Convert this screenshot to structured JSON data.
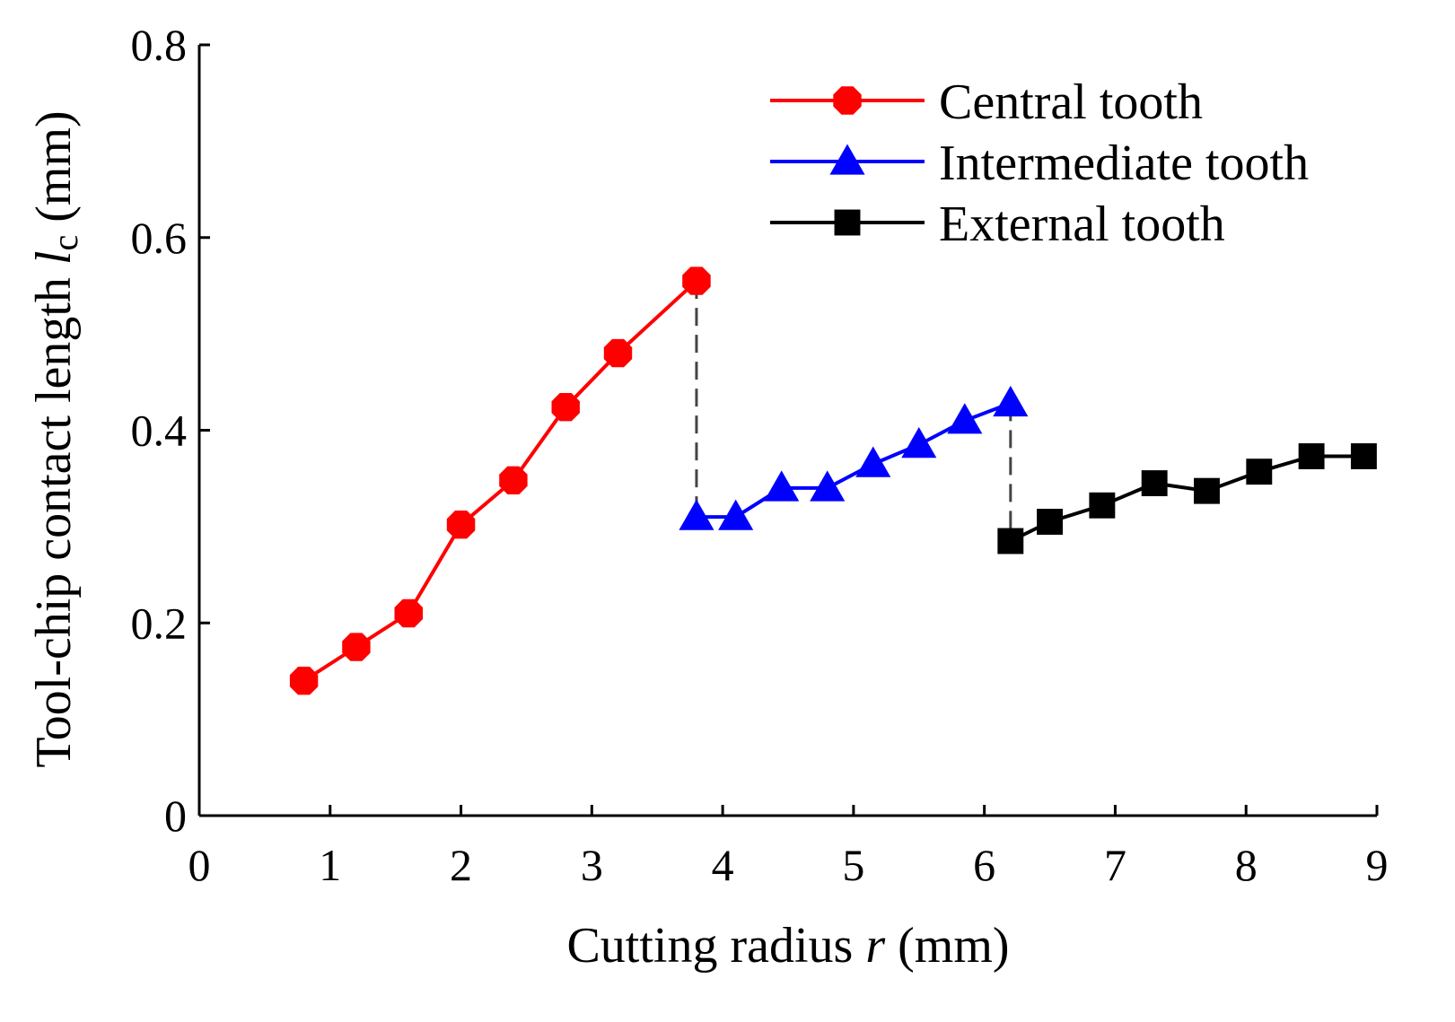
{
  "chart_data": {
    "type": "line",
    "title": "",
    "xlabel": {
      "prefix": "Cutting radius ",
      "var": "r",
      "suffix": " (mm)"
    },
    "ylabel": {
      "prefix": "Tool-chip contact length ",
      "var": "l",
      "sub": "c",
      "suffix": " (mm)"
    },
    "xlim": [
      0,
      9
    ],
    "ylim": [
      0,
      0.8
    ],
    "x_ticks": [
      0,
      1,
      2,
      3,
      4,
      5,
      6,
      7,
      8,
      9
    ],
    "x_tick_labels": [
      "0",
      "1",
      "2",
      "3",
      "4",
      "5",
      "6",
      "7",
      "8",
      "9"
    ],
    "y_ticks": [
      0,
      0.2,
      0.4,
      0.6,
      0.8
    ],
    "y_tick_labels": [
      "0",
      "0.2",
      "0.4",
      "0.6",
      "0.8"
    ],
    "grid": false,
    "legend_position": "top-right",
    "series": [
      {
        "name": "Central tooth",
        "color": "#ff0000",
        "marker": "octagon",
        "x": [
          0.8,
          1.2,
          1.6,
          2.0,
          2.4,
          2.8,
          3.2,
          3.8
        ],
        "y": [
          0.14,
          0.175,
          0.21,
          0.302,
          0.348,
          0.424,
          0.48,
          0.555
        ]
      },
      {
        "name": "Intermediate tooth",
        "color": "#0000ff",
        "marker": "triangle",
        "x": [
          3.8,
          4.1,
          4.45,
          4.8,
          5.15,
          5.5,
          5.85,
          6.2
        ],
        "y": [
          0.31,
          0.31,
          0.34,
          0.34,
          0.365,
          0.385,
          0.41,
          0.428
        ]
      },
      {
        "name": "External tooth",
        "color": "#000000",
        "marker": "square",
        "x": [
          6.2,
          6.5,
          6.9,
          7.3,
          7.7,
          8.1,
          8.5,
          8.9
        ],
        "y": [
          0.285,
          0.305,
          0.322,
          0.345,
          0.337,
          0.357,
          0.373,
          0.373
        ]
      }
    ],
    "annotations": [
      {
        "type": "dashed-vline",
        "x": 3.8,
        "y_from": 0.31,
        "y_to": 0.555,
        "color": "#444444"
      },
      {
        "type": "dashed-vline",
        "x": 6.2,
        "y_from": 0.285,
        "y_to": 0.428,
        "color": "#444444"
      }
    ]
  }
}
